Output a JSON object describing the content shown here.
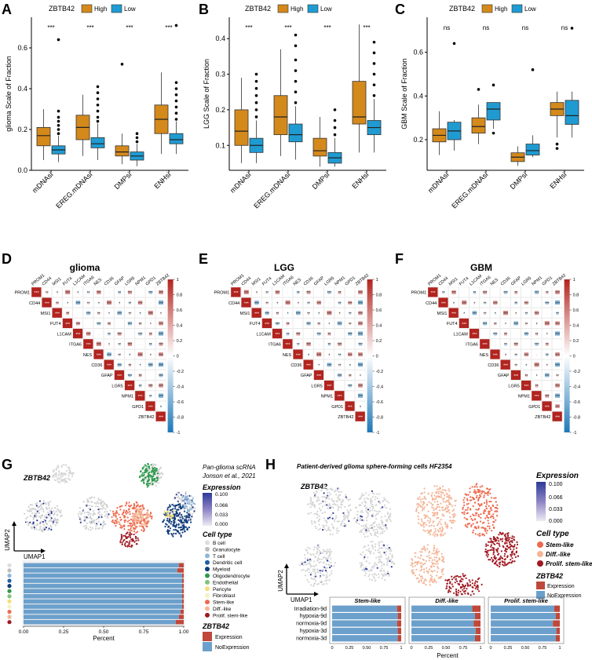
{
  "colors": {
    "high": "#D4891B",
    "low": "#1F9BD2",
    "expr": "#C0483A",
    "noexpr": "#6CA0CC",
    "neg": "#2B86C5",
    "pos": "#C23B2E",
    "grey": "#D2D2D2",
    "stem": "#EE6A4E",
    "diff": "#F2B596",
    "prolif": "#A01820",
    "bcell": "#DDDDDD",
    "dend": "#1F5FA8",
    "myeloid": "#0F3C7A",
    "oligo": "#2E9A4C",
    "endo": "#7FC37A",
    "peri": "#F6DF7C",
    "fibro": "#F6F1C4",
    "stem2": "#EE6A4E",
    "diff2": "#F4B596",
    "prolif2": "#A01820"
  },
  "panels": {
    "A": "A",
    "B": "B",
    "C": "C",
    "D": "D",
    "E": "E",
    "F": "F",
    "G": "G",
    "H": "H"
  },
  "box_legend": {
    "title": "ZBTB42",
    "high": "High",
    "low": "Low"
  },
  "chart_data": [
    {
      "id": "A",
      "type": "boxplot",
      "ylabel": "glioma Scale of Fraction",
      "categories": [
        "mDNAsi",
        "EREG.mDNAsi",
        "DMPsi",
        "ENHsi"
      ],
      "ylim": [
        0,
        0.75
      ],
      "yticks": [
        "0.0",
        "0.2",
        "0.4",
        "0.6"
      ],
      "ytick_values": [
        0,
        0.2,
        0.4,
        0.6
      ],
      "significance": [
        "***",
        "***",
        "***",
        "***"
      ],
      "series": [
        {
          "name": "High",
          "boxes": [
            [
              0.05,
              0.12,
              0.17,
              0.21,
              0.3
            ],
            [
              0.07,
              0.15,
              0.21,
              0.27,
              0.37
            ],
            [
              0.03,
              0.07,
              0.09,
              0.12,
              0.18
            ],
            [
              0.08,
              0.18,
              0.25,
              0.32,
              0.48
            ]
          ],
          "outliers": [
            [],
            [],
            [
              0.52
            ],
            []
          ]
        },
        {
          "name": "Low",
          "boxes": [
            [
              0.04,
              0.08,
              0.1,
              0.12,
              0.17
            ],
            [
              0.05,
              0.11,
              0.13,
              0.16,
              0.23
            ],
            [
              0.02,
              0.05,
              0.07,
              0.09,
              0.13
            ],
            [
              0.08,
              0.13,
              0.15,
              0.18,
              0.24
            ]
          ],
          "outliers": [
            [
              0.18,
              0.2,
              0.22,
              0.24,
              0.26,
              0.29,
              0.64
            ],
            [
              0.24,
              0.26,
              0.29,
              0.32,
              0.35,
              0.38,
              0.41
            ],
            [
              0.14,
              0.16,
              0.18
            ],
            [
              0.25,
              0.28,
              0.31,
              0.34,
              0.37,
              0.4,
              0.43,
              0.71
            ]
          ]
        }
      ]
    },
    {
      "id": "B",
      "type": "boxplot",
      "ylabel": "LGG Scale of Fraction",
      "categories": [
        "mDNAsi",
        "EREG.mDNAsi",
        "DMPsi",
        "ENHsi"
      ],
      "ylim": [
        0.03,
        0.46
      ],
      "yticks": [
        "0.1",
        "0.2",
        "0.3",
        "0.4"
      ],
      "ytick_values": [
        0.1,
        0.2,
        0.3,
        0.4
      ],
      "significance": [
        "***",
        "***",
        "***",
        "***"
      ],
      "series": [
        {
          "name": "High",
          "boxes": [
            [
              0.05,
              0.1,
              0.14,
              0.2,
              0.29
            ],
            [
              0.07,
              0.13,
              0.18,
              0.24,
              0.37
            ],
            [
              0.04,
              0.07,
              0.085,
              0.12,
              0.18
            ],
            [
              0.08,
              0.16,
              0.18,
              0.28,
              0.44
            ]
          ],
          "outliers": [
            [],
            [],
            [],
            []
          ]
        },
        {
          "name": "Low",
          "boxes": [
            [
              0.05,
              0.08,
              0.1,
              0.12,
              0.17
            ],
            [
              0.06,
              0.11,
              0.13,
              0.16,
              0.21
            ],
            [
              0.04,
              0.05,
              0.065,
              0.08,
              0.12
            ],
            [
              0.08,
              0.13,
              0.15,
              0.17,
              0.23
            ]
          ],
          "outliers": [
            [
              0.18,
              0.2,
              0.22,
              0.24,
              0.26,
              0.28,
              0.3
            ],
            [
              0.22,
              0.25,
              0.28,
              0.31,
              0.34,
              0.38,
              0.41
            ],
            [
              0.13,
              0.15,
              0.17,
              0.2
            ],
            [
              0.24,
              0.27,
              0.3,
              0.33,
              0.36,
              0.39
            ]
          ]
        }
      ]
    },
    {
      "id": "C",
      "type": "boxplot",
      "ylabel": "GBM Scale of Fraction",
      "categories": [
        "mDNAsi",
        "EREG.mDNAsi",
        "DMPsi",
        "ENHsi"
      ],
      "ylim": [
        0.06,
        0.76
      ],
      "yticks": [
        "0.2",
        "0.4",
        "0.6"
      ],
      "ytick_values": [
        0.2,
        0.4,
        0.6
      ],
      "significance": [
        "ns",
        "ns",
        "ns",
        "ns"
      ],
      "series": [
        {
          "name": "High",
          "boxes": [
            [
              0.13,
              0.19,
              0.22,
              0.25,
              0.33
            ],
            [
              0.18,
              0.23,
              0.26,
              0.3,
              0.36
            ],
            [
              0.08,
              0.1,
              0.12,
              0.14,
              0.17
            ],
            [
              0.21,
              0.31,
              0.34,
              0.37,
              0.42
            ]
          ],
          "outliers": [
            [],
            [
              0.43
            ],
            [],
            [
              0.16,
              0.18
            ]
          ]
        },
        {
          "name": "Low",
          "boxes": [
            [
              0.15,
              0.2,
              0.24,
              0.28,
              0.29
            ],
            [
              0.25,
              0.29,
              0.34,
              0.37,
              0.37
            ],
            [
              0.12,
              0.13,
              0.15,
              0.18,
              0.22
            ],
            [
              0.21,
              0.27,
              0.31,
              0.38,
              0.42
            ]
          ],
          "outliers": [
            [
              0.64
            ],
            [
              0.23,
              0.45
            ],
            [
              0.52
            ],
            [
              0.71
            ]
          ]
        }
      ]
    },
    {
      "id": "D",
      "type": "heatmap",
      "title": "glioma",
      "genes": [
        "PROM1",
        "CD44",
        "MSI1",
        "FUT4",
        "L1CAM",
        "ITGA6",
        "NES",
        "CD36",
        "GFAP",
        "LGR5",
        "NPM1",
        "GPD1",
        "ZBTB42"
      ],
      "scale_ticks": [
        "1",
        "0.8",
        "0.6",
        "0.4",
        "0.2",
        "0",
        "-0.2",
        "-0.4",
        "-0.6",
        "-0.8",
        "-1"
      ]
    },
    {
      "id": "E",
      "type": "heatmap",
      "title": "LGG",
      "genes": [
        "PROM1",
        "CD44",
        "MSI1",
        "FUT4",
        "L1CAM",
        "ITGA6",
        "NES",
        "CD36",
        "GFAP",
        "LGR5",
        "NPM1",
        "GPD1",
        "ZBTB42"
      ],
      "scale_ticks": [
        "1",
        "0.8",
        "0.6",
        "0.4",
        "0.2",
        "0",
        "-0.2",
        "-0.4",
        "-0.6",
        "-0.8",
        "-1"
      ]
    },
    {
      "id": "F",
      "type": "heatmap",
      "title": "GBM",
      "genes": [
        "PROM1",
        "CD44",
        "MSI1",
        "FUT4",
        "L1CAM",
        "ITGA6",
        "NES",
        "CD36",
        "GFAP",
        "LGR5",
        "NPM1",
        "GPD1",
        "ZBTB42"
      ],
      "scale_ticks": [
        "1",
        "0.8",
        "0.6",
        "0.4",
        "0.2",
        "0",
        "-0.2",
        "-0.4",
        "-0.6",
        "-0.8",
        "-1"
      ]
    },
    {
      "id": "G",
      "type": "stacked-bar",
      "xlabel": "Percent",
      "xticks": [
        "0.00",
        "0.25",
        "0.50",
        "0.75",
        "1.00"
      ],
      "rows": 12,
      "expression_fraction": [
        0.03,
        0.04,
        0.01,
        0.01,
        0.01,
        0.01,
        0.01,
        0.01,
        0.01,
        0.02,
        0.03,
        0.05
      ]
    },
    {
      "id": "H",
      "type": "stacked-bar",
      "xlabel": "Percent",
      "xticks": [
        "0",
        "0.25",
        "0.50",
        "0.75",
        "1"
      ],
      "rows": [
        "Irradiation-9d",
        "hypoxia-9d",
        "normoxia-9d",
        "hypoxia-3d",
        "normoxia-3d"
      ],
      "facets": [
        "Stem-like",
        "Diff.-like",
        "Prolif. stem-like"
      ],
      "expression_fraction": [
        [
          0.06,
          0.05,
          0.06,
          0.05,
          0.05
        ],
        [
          0.12,
          0.08,
          0.1,
          0.07,
          0.08
        ],
        [
          0.08,
          0.06,
          0.1,
          0.05,
          0.06
        ]
      ]
    }
  ],
  "G": {
    "gene": "ZBTB42",
    "umap_x": "UMAP1",
    "umap_y": "UMAP2",
    "title1": "Pan-glioma scRNA",
    "title2": "Jonson et al., 2021",
    "expr_title": "Expression",
    "expr_ticks": [
      "0.100",
      "0.066",
      "0.033",
      "0.000"
    ],
    "celltype_title": "Cell type",
    "celltypes": [
      "B cell",
      "Granulocyte",
      "T cell",
      "Dendritic cell",
      "Myeloid",
      "Oligodendrocyte",
      "Endothelial",
      "Pericyte",
      "Fibroblast",
      "Stem-like",
      "Diff.-like",
      "Prolif. stem-like"
    ],
    "celltype_colors": [
      "#DDDDDD",
      "#BDBDBD",
      "#8EB6D8",
      "#1F5FA8",
      "#0F3C7A",
      "#2E9A4C",
      "#7FC37A",
      "#F6DF7C",
      "#F6F1C4",
      "#EE6A4E",
      "#F4B596",
      "#A01820"
    ],
    "bar_legend_title": "ZBTB42",
    "expression": "Expression",
    "noexpression": "NoExpression"
  },
  "H": {
    "title": "Patient-derived glioma sphere-forming cells HF2354",
    "gene": "ZBTB42",
    "umap_x": "UMAP1",
    "umap_y": "UMAP2",
    "expr_title": "Expression",
    "expr_ticks": [
      "0.100",
      "0.066",
      "0.033",
      "0.000"
    ],
    "celltype_title": "Cell type",
    "celltypes": [
      "Stem-like",
      "Diff.-like",
      "Prolif. stem-like"
    ],
    "bar_legend_title": "ZBTB42",
    "expression": "Expression",
    "noexpression": "NoExpression"
  }
}
